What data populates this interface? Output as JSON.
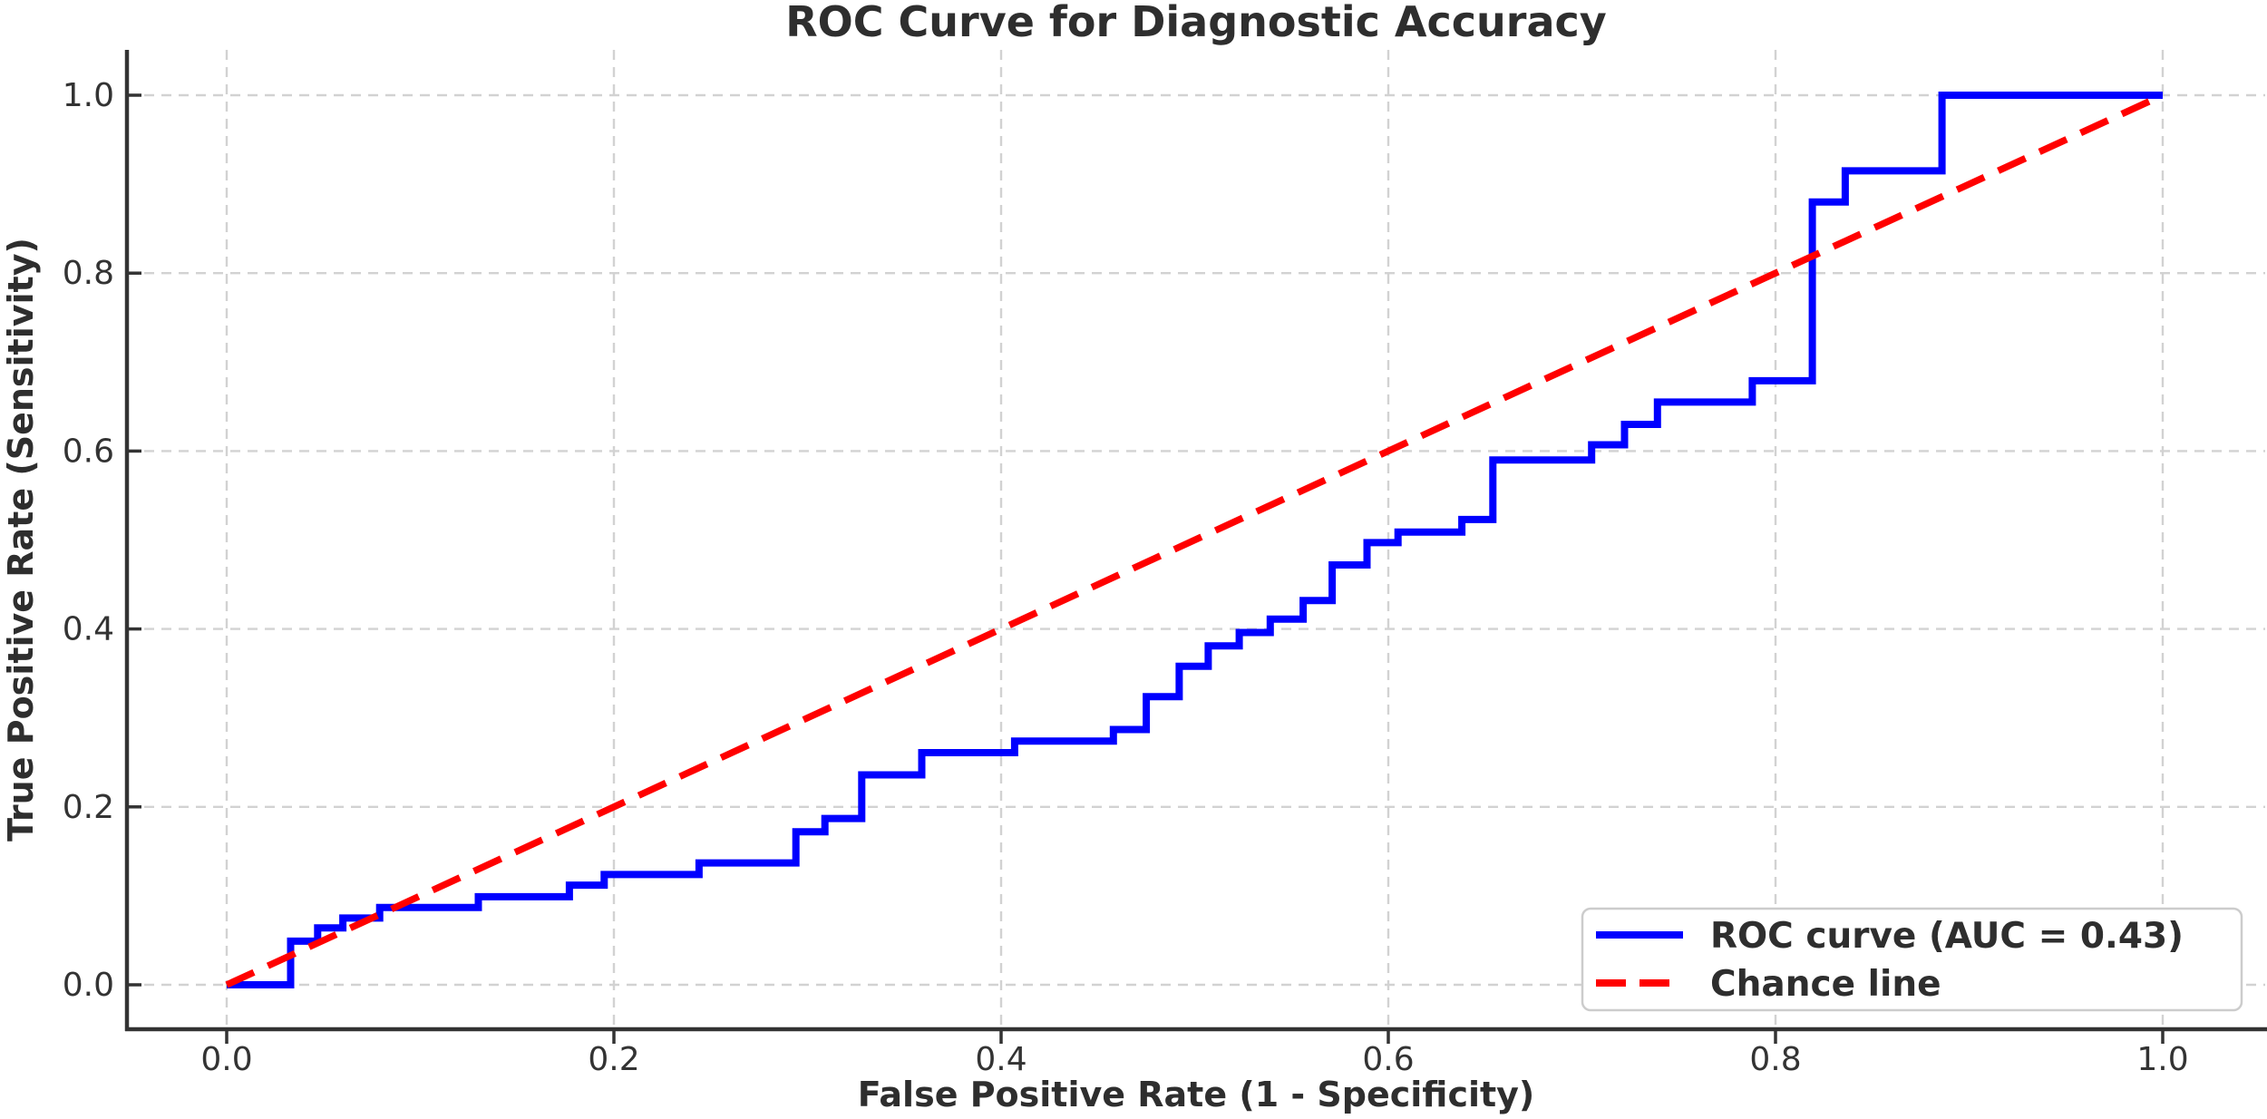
{
  "chart": {
    "title": "ROC Curve for Diagnostic Accuracy",
    "xlabel": "False Positive Rate (1 - Specificity)",
    "ylabel": "True Positive Rate (Sensitivity)"
  },
  "legend": {
    "items": [
      {
        "label": "ROC curve (AUC = 0.43)",
        "color": "#0000ff",
        "dash": "none"
      },
      {
        "label": "Chance line",
        "color": "#ff0000",
        "dash": "33 15"
      }
    ]
  },
  "chart_data": {
    "type": "line",
    "title": "ROC Curve for Diagnostic Accuracy",
    "xlabel": "False Positive Rate (1 - Specificity)",
    "ylabel": "True Positive Rate (Sensitivity)",
    "xlim": [
      0.0,
      1.0
    ],
    "ylim": [
      0.0,
      1.0
    ],
    "x_ticks": [
      0.0,
      0.2,
      0.4,
      0.6,
      0.8,
      1.0
    ],
    "y_ticks": [
      0.0,
      0.2,
      0.4,
      0.6,
      0.8,
      1.0
    ],
    "x_tick_labels": [
      "0.0",
      "0.2",
      "0.4",
      "0.6",
      "0.8",
      "1.0"
    ],
    "y_tick_labels": [
      "0.0",
      "0.2",
      "0.4",
      "0.6",
      "0.8",
      "1.0"
    ],
    "grid": true,
    "legend_position": "lower right",
    "series": [
      {
        "name": "ROC curve (AUC = 0.43)",
        "style": "step",
        "color": "#0000ff",
        "auc": 0.43,
        "points": [
          [
            0.0,
            0.0
          ],
          [
            0.033,
            0.049
          ],
          [
            0.047,
            0.064
          ],
          [
            0.06,
            0.075
          ],
          [
            0.079,
            0.087
          ],
          [
            0.13,
            0.099
          ],
          [
            0.177,
            0.112
          ],
          [
            0.195,
            0.124
          ],
          [
            0.244,
            0.137
          ],
          [
            0.294,
            0.172
          ],
          [
            0.309,
            0.187
          ],
          [
            0.328,
            0.236
          ],
          [
            0.359,
            0.261
          ],
          [
            0.407,
            0.274
          ],
          [
            0.458,
            0.287
          ],
          [
            0.475,
            0.324
          ],
          [
            0.492,
            0.358
          ],
          [
            0.507,
            0.381
          ],
          [
            0.523,
            0.396
          ],
          [
            0.539,
            0.411
          ],
          [
            0.556,
            0.432
          ],
          [
            0.571,
            0.472
          ],
          [
            0.589,
            0.497
          ],
          [
            0.605,
            0.509
          ],
          [
            0.638,
            0.523
          ],
          [
            0.654,
            0.59
          ],
          [
            0.705,
            0.607
          ],
          [
            0.722,
            0.63
          ],
          [
            0.739,
            0.655
          ],
          [
            0.788,
            0.679
          ],
          [
            0.819,
            0.88
          ],
          [
            0.836,
            0.915
          ],
          [
            0.886,
            1.0
          ],
          [
            1.0,
            1.0
          ]
        ]
      },
      {
        "name": "Chance line",
        "style": "dashed",
        "color": "#ff0000",
        "points": [
          [
            0.0,
            0.0
          ],
          [
            1.0,
            1.0
          ]
        ]
      }
    ],
    "styles": {
      "grid_color": "#d2d2d2",
      "spine_color": "#333333",
      "tick_color": "#333333",
      "text_color": "#2e2e2e",
      "legend_border": "#cccccc",
      "legend_bg": "#ffffff",
      "roc_line_width": 8,
      "chance_line_width": 7.5,
      "chance_dash": "33 17"
    }
  }
}
